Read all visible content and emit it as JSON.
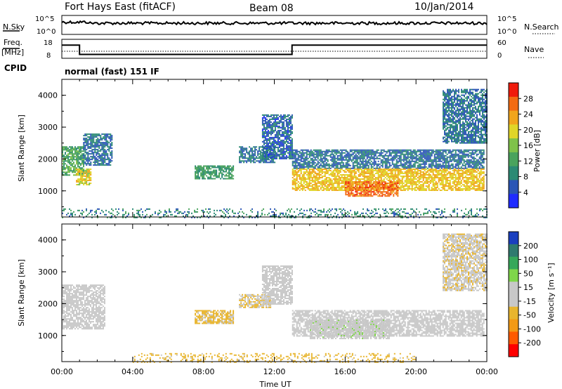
{
  "header": {
    "station": "Fort Hays East (fitACF)",
    "beam": "Beam 08",
    "date": "10/Jan/2014"
  },
  "noise_panel": {
    "left_label": "N.Sky",
    "right_label": "N.Search",
    "left_ticks": [
      "10^5",
      "10^0"
    ],
    "right_ticks": [
      "10^5",
      "10^0"
    ]
  },
  "freq_panel": {
    "left_label_line1": "Freq.",
    "left_label_line2": "[MHz]",
    "right_label": "Nave",
    "left_ticks": [
      "18",
      "8"
    ],
    "right_ticks": [
      "60",
      "0"
    ],
    "freq_series": [
      {
        "t": 0.0,
        "mhz": 16.5
      },
      {
        "t": 1.0,
        "mhz": 16.5
      },
      {
        "t": 1.0,
        "mhz": 10.5
      },
      {
        "t": 13.0,
        "mhz": 10.5
      },
      {
        "t": 13.0,
        "mhz": 16.5
      },
      {
        "t": 24.0,
        "mhz": 16.5
      }
    ]
  },
  "cpid": {
    "label": "CPID",
    "value": "normal (fast) 151 IF"
  },
  "colors": {
    "power": [
      "#1f2bff",
      "#2a55b5",
      "#2c8a74",
      "#4aa35d",
      "#7fc24a",
      "#e0d528",
      "#f1a51c",
      "#f36b12",
      "#f01b0c"
    ],
    "velocity": [
      "#ff0000",
      "#ff5a00",
      "#f39a15",
      "#e8b52e",
      "#c8c8c8",
      "#c8c8c8",
      "#7fd64a",
      "#36a85a",
      "#2f7a6f",
      "#1a3fbf"
    ]
  },
  "chart_data": [
    {
      "type": "heatmap",
      "name": "power",
      "title": "",
      "xlabel": "",
      "ylabel": "Slant Range [km]",
      "x_range": [
        "00:00",
        "24:00"
      ],
      "ylim": [
        180,
        4500
      ],
      "yticks": [
        "1000",
        "2000",
        "3000",
        "4000"
      ],
      "colorbar": {
        "label": "Power [dB]",
        "ticks": [
          "4",
          "8",
          "12",
          "16",
          "20",
          "24",
          "28"
        ],
        "range": [
          0,
          32
        ]
      },
      "regions": [
        {
          "t0": 0.0,
          "t1": 1.2,
          "r0": 1500,
          "r1": 2400,
          "level": 12
        },
        {
          "t0": 0.8,
          "t1": 1.6,
          "r0": 1200,
          "r1": 1700,
          "level": 20
        },
        {
          "t0": 1.2,
          "t1": 2.8,
          "r0": 1800,
          "r1": 2800,
          "level": 6
        },
        {
          "t0": 7.5,
          "t1": 9.7,
          "r0": 1400,
          "r1": 1800,
          "level": 10
        },
        {
          "t0": 10.0,
          "t1": 12.0,
          "r0": 1900,
          "r1": 2400,
          "level": 6
        },
        {
          "t0": 11.3,
          "t1": 13.0,
          "r0": 2000,
          "r1": 3400,
          "level": 5
        },
        {
          "t0": 13.0,
          "t1": 23.8,
          "r0": 1700,
          "r1": 2300,
          "level": 6
        },
        {
          "t0": 13.0,
          "t1": 23.8,
          "r0": 1000,
          "r1": 1700,
          "level": 22
        },
        {
          "t0": 16.0,
          "t1": 19.0,
          "r0": 850,
          "r1": 1300,
          "level": 28
        },
        {
          "t0": 21.5,
          "t1": 24.0,
          "r0": 2500,
          "r1": 4200,
          "level": 6
        },
        {
          "t0": 0.0,
          "t1": 24.0,
          "r0": 180,
          "r1": 450,
          "level": 8
        }
      ]
    },
    {
      "type": "heatmap",
      "name": "velocity",
      "title": "",
      "xlabel": "Time UT",
      "ylabel": "Slant Range [km]",
      "x_range": [
        "00:00",
        "24:00"
      ],
      "xticks": [
        "00:00",
        "04:00",
        "08:00",
        "12:00",
        "16:00",
        "20:00",
        "00:00"
      ],
      "ylim": [
        180,
        4500
      ],
      "yticks": [
        "1000",
        "2000",
        "3000",
        "4000"
      ],
      "colorbar": {
        "label": "Velocity [m s⁻¹]",
        "ticks": [
          "200",
          "100",
          "50",
          "15",
          "-15",
          "-50",
          "-100",
          "-200"
        ],
        "range": [
          -250,
          250
        ]
      },
      "regions": [
        {
          "t0": 0.0,
          "t1": 2.4,
          "r0": 1200,
          "r1": 2600,
          "vel": 0
        },
        {
          "t0": 7.5,
          "t1": 9.7,
          "r0": 1400,
          "r1": 1800,
          "vel": -70
        },
        {
          "t0": 10.0,
          "t1": 11.8,
          "r0": 1900,
          "r1": 2300,
          "vel": -60
        },
        {
          "t0": 11.3,
          "t1": 13.0,
          "r0": 2000,
          "r1": 3200,
          "vel": 0
        },
        {
          "t0": 13.0,
          "t1": 23.8,
          "r0": 1000,
          "r1": 1800,
          "vel": 0
        },
        {
          "t0": 14.0,
          "t1": 18.5,
          "r0": 900,
          "r1": 1500,
          "vel": 30
        },
        {
          "t0": 21.5,
          "t1": 24.0,
          "r0": 2400,
          "r1": 4200,
          "vel": -40
        },
        {
          "t0": 4.0,
          "t1": 20.0,
          "r0": 180,
          "r1": 450,
          "vel": -80
        }
      ]
    }
  ]
}
